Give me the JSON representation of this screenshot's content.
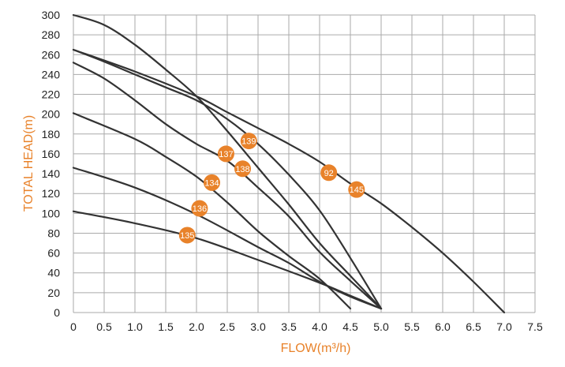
{
  "chart_data": {
    "type": "line",
    "title": "",
    "xlabel": "FLOW(m³/h)",
    "ylabel": "TOTAL HEAD(m)",
    "xlim": [
      0,
      7.5
    ],
    "ylim": [
      0,
      300
    ],
    "xticks": [
      0,
      0.5,
      1.0,
      1.5,
      2.0,
      2.5,
      3.0,
      3.5,
      4.0,
      4.5,
      5.0,
      5.5,
      6.0,
      6.5,
      7.0,
      7.5
    ],
    "xtick_labels": [
      "0",
      "0.5",
      "1.0",
      "1.5",
      "2.0",
      "2.5",
      "3.0",
      "3.5",
      "4.0",
      "4.5",
      "5.0",
      "5.5",
      "6.0",
      "6.5",
      "7.0",
      "7.5"
    ],
    "yticks": [
      0,
      20,
      40,
      60,
      80,
      100,
      120,
      140,
      160,
      180,
      200,
      220,
      240,
      260,
      280,
      300
    ],
    "ytick_labels": [
      "0",
      "20",
      "40",
      "60",
      "80",
      "100",
      "120",
      "140",
      "160",
      "180",
      "200",
      "220",
      "240",
      "260",
      "280",
      "300"
    ],
    "grid": true,
    "colors": {
      "curve": "#333333",
      "grid": "#aaaaaa",
      "accent": "#e8822a",
      "badge_text": "#ffffff"
    },
    "series": [
      {
        "name": "135",
        "label_at": [
          1.85,
          78
        ],
        "points": [
          [
            0,
            102
          ],
          [
            1.0,
            90
          ],
          [
            2.0,
            75
          ],
          [
            3.0,
            53
          ],
          [
            4.0,
            30
          ],
          [
            4.5,
            17
          ],
          [
            5.0,
            4
          ]
        ]
      },
      {
        "name": "136",
        "label_at": [
          2.05,
          105
        ],
        "points": [
          [
            0,
            146
          ],
          [
            1.0,
            126
          ],
          [
            2.0,
            99
          ],
          [
            3.0,
            66
          ],
          [
            3.5,
            50
          ],
          [
            4.0,
            31
          ],
          [
            4.5,
            16
          ],
          [
            5.0,
            4
          ]
        ]
      },
      {
        "name": "134",
        "label_at": [
          2.25,
          131
        ],
        "points": [
          [
            0,
            201
          ],
          [
            1.0,
            175
          ],
          [
            1.5,
            157
          ],
          [
            2.0,
            137
          ],
          [
            2.5,
            111
          ],
          [
            3.0,
            82
          ],
          [
            3.5,
            57
          ],
          [
            4.0,
            34
          ],
          [
            4.5,
            4
          ]
        ]
      },
      {
        "name": "138",
        "label_at": [
          2.75,
          145
        ],
        "points": [
          [
            0,
            252
          ],
          [
            0.5,
            236
          ],
          [
            1.0,
            214
          ],
          [
            1.5,
            190
          ],
          [
            2.0,
            170
          ],
          [
            2.5,
            153
          ],
          [
            3.0,
            126
          ],
          [
            3.5,
            97
          ],
          [
            4.0,
            61
          ],
          [
            4.5,
            32
          ],
          [
            5.0,
            4
          ]
        ]
      },
      {
        "name": "137",
        "label_at": [
          2.48,
          160
        ],
        "points": [
          [
            0,
            265
          ],
          [
            0.5,
            253
          ],
          [
            1.0,
            240
          ],
          [
            1.5,
            227
          ],
          [
            2.0,
            214
          ],
          [
            2.5,
            195
          ],
          [
            3.0,
            170
          ],
          [
            3.5,
            139
          ],
          [
            4.0,
            103
          ],
          [
            4.5,
            55
          ],
          [
            5.0,
            4
          ]
        ]
      },
      {
        "name": "139",
        "label_at": [
          2.85,
          173
        ],
        "points": [
          [
            0,
            300
          ],
          [
            0.5,
            290
          ],
          [
            1.0,
            270
          ],
          [
            1.5,
            245
          ],
          [
            2.0,
            218
          ],
          [
            2.5,
            183
          ],
          [
            3.0,
            146
          ],
          [
            3.5,
            109
          ],
          [
            4.0,
            70
          ],
          [
            4.5,
            37
          ],
          [
            5.0,
            4
          ]
        ]
      },
      {
        "name": "92",
        "label_at": [
          4.15,
          141
        ],
        "points": [
          [
            0,
            265
          ],
          [
            1.0,
            243
          ],
          [
            2.0,
            218
          ],
          [
            2.5,
            202
          ],
          [
            3.0,
            186
          ],
          [
            3.5,
            170
          ],
          [
            4.0,
            152
          ],
          [
            4.5,
            130
          ],
          [
            5.0,
            110
          ],
          [
            5.5,
            86
          ],
          [
            6.0,
            60
          ],
          [
            6.5,
            31
          ],
          [
            7.0,
            0
          ]
        ]
      },
      {
        "name": "145",
        "label_at": [
          4.6,
          124
        ],
        "hidden_line": true,
        "points": []
      }
    ]
  }
}
